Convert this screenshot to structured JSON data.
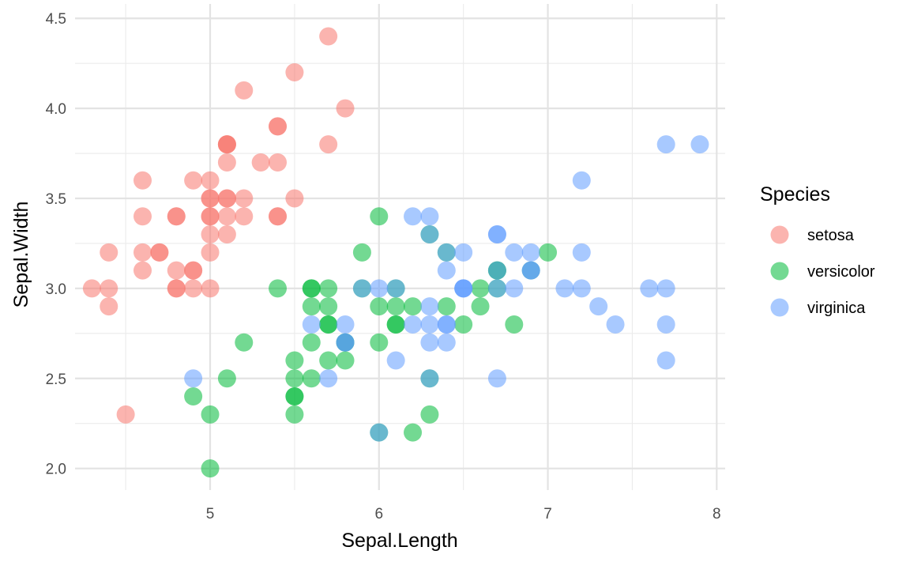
{
  "chart_data": {
    "type": "scatter",
    "xlabel": "Sepal.Length",
    "ylabel": "Sepal.Width",
    "xlim": [
      4.2,
      8.05
    ],
    "ylim": [
      1.88,
      4.58
    ],
    "x_ticks": [
      5,
      6,
      7,
      8
    ],
    "x_tick_labels": [
      "5",
      "6",
      "7",
      "8"
    ],
    "y_ticks": [
      2.0,
      2.5,
      3.0,
      3.5,
      4.0,
      4.5
    ],
    "y_tick_labels": [
      "2.0",
      "2.5",
      "3.0",
      "3.5",
      "4.0",
      "4.5"
    ],
    "grid": true,
    "legend": {
      "title": "Species",
      "position": "right"
    },
    "series": [
      {
        "name": "setosa",
        "color": "#F8766D",
        "points": [
          [
            5.1,
            3.5
          ],
          [
            4.9,
            3.0
          ],
          [
            4.7,
            3.2
          ],
          [
            4.6,
            3.1
          ],
          [
            5.0,
            3.6
          ],
          [
            5.4,
            3.9
          ],
          [
            4.6,
            3.4
          ],
          [
            5.0,
            3.4
          ],
          [
            4.4,
            2.9
          ],
          [
            4.9,
            3.1
          ],
          [
            5.4,
            3.7
          ],
          [
            4.8,
            3.4
          ],
          [
            4.8,
            3.0
          ],
          [
            4.3,
            3.0
          ],
          [
            5.8,
            4.0
          ],
          [
            5.7,
            4.4
          ],
          [
            5.4,
            3.9
          ],
          [
            5.1,
            3.5
          ],
          [
            5.7,
            3.8
          ],
          [
            5.1,
            3.8
          ],
          [
            5.4,
            3.4
          ],
          [
            5.1,
            3.7
          ],
          [
            4.6,
            3.6
          ],
          [
            5.1,
            3.3
          ],
          [
            4.8,
            3.4
          ],
          [
            5.0,
            3.0
          ],
          [
            5.0,
            3.4
          ],
          [
            5.2,
            3.5
          ],
          [
            5.2,
            3.4
          ],
          [
            4.7,
            3.2
          ],
          [
            4.8,
            3.1
          ],
          [
            5.4,
            3.4
          ],
          [
            5.2,
            4.1
          ],
          [
            5.5,
            4.2
          ],
          [
            4.9,
            3.1
          ],
          [
            5.0,
            3.2
          ],
          [
            5.5,
            3.5
          ],
          [
            4.9,
            3.6
          ],
          [
            4.4,
            3.0
          ],
          [
            5.1,
            3.4
          ],
          [
            5.0,
            3.5
          ],
          [
            4.5,
            2.3
          ],
          [
            4.4,
            3.2
          ],
          [
            5.0,
            3.5
          ],
          [
            5.1,
            3.8
          ],
          [
            4.8,
            3.0
          ],
          [
            5.1,
            3.8
          ],
          [
            4.6,
            3.2
          ],
          [
            5.3,
            3.7
          ],
          [
            5.0,
            3.3
          ]
        ]
      },
      {
        "name": "versicolor",
        "color": "#00BA38",
        "points": [
          [
            7.0,
            3.2
          ],
          [
            6.4,
            3.2
          ],
          [
            6.9,
            3.1
          ],
          [
            5.5,
            2.3
          ],
          [
            6.5,
            2.8
          ],
          [
            5.7,
            2.8
          ],
          [
            6.3,
            3.3
          ],
          [
            4.9,
            2.4
          ],
          [
            6.6,
            2.9
          ],
          [
            5.2,
            2.7
          ],
          [
            5.0,
            2.0
          ],
          [
            5.9,
            3.0
          ],
          [
            6.0,
            2.2
          ],
          [
            6.1,
            2.9
          ],
          [
            5.6,
            2.9
          ],
          [
            6.7,
            3.1
          ],
          [
            5.6,
            3.0
          ],
          [
            5.8,
            2.7
          ],
          [
            6.2,
            2.2
          ],
          [
            5.6,
            2.5
          ],
          [
            5.9,
            3.2
          ],
          [
            6.1,
            2.8
          ],
          [
            6.3,
            2.5
          ],
          [
            6.1,
            2.8
          ],
          [
            6.4,
            2.9
          ],
          [
            6.6,
            3.0
          ],
          [
            6.8,
            2.8
          ],
          [
            6.7,
            3.0
          ],
          [
            6.0,
            2.9
          ],
          [
            5.7,
            2.6
          ],
          [
            5.5,
            2.4
          ],
          [
            5.5,
            2.4
          ],
          [
            5.8,
            2.7
          ],
          [
            6.0,
            2.7
          ],
          [
            5.4,
            3.0
          ],
          [
            6.0,
            3.4
          ],
          [
            6.7,
            3.1
          ],
          [
            6.3,
            2.3
          ],
          [
            5.6,
            3.0
          ],
          [
            5.5,
            2.5
          ],
          [
            5.5,
            2.6
          ],
          [
            6.1,
            3.0
          ],
          [
            5.8,
            2.6
          ],
          [
            5.0,
            2.3
          ],
          [
            5.6,
            2.7
          ],
          [
            5.7,
            3.0
          ],
          [
            5.7,
            2.9
          ],
          [
            6.2,
            2.9
          ],
          [
            5.1,
            2.5
          ],
          [
            5.7,
            2.8
          ]
        ]
      },
      {
        "name": "virginica",
        "color": "#619CFF",
        "points": [
          [
            6.3,
            3.3
          ],
          [
            5.8,
            2.7
          ],
          [
            7.1,
            3.0
          ],
          [
            6.3,
            2.9
          ],
          [
            6.5,
            3.0
          ],
          [
            7.6,
            3.0
          ],
          [
            4.9,
            2.5
          ],
          [
            7.3,
            2.9
          ],
          [
            6.7,
            2.5
          ],
          [
            7.2,
            3.6
          ],
          [
            6.5,
            3.2
          ],
          [
            6.4,
            2.7
          ],
          [
            6.8,
            3.0
          ],
          [
            5.7,
            2.5
          ],
          [
            5.8,
            2.8
          ],
          [
            6.4,
            3.2
          ],
          [
            6.5,
            3.0
          ],
          [
            7.7,
            3.8
          ],
          [
            7.7,
            2.6
          ],
          [
            6.0,
            2.2
          ],
          [
            6.9,
            3.2
          ],
          [
            5.6,
            2.8
          ],
          [
            7.7,
            2.8
          ],
          [
            6.3,
            2.7
          ],
          [
            6.7,
            3.3
          ],
          [
            7.2,
            3.2
          ],
          [
            6.2,
            2.8
          ],
          [
            6.1,
            3.0
          ],
          [
            6.4,
            2.8
          ],
          [
            7.2,
            3.0
          ],
          [
            7.4,
            2.8
          ],
          [
            7.9,
            3.8
          ],
          [
            6.4,
            2.8
          ],
          [
            6.3,
            2.8
          ],
          [
            6.1,
            2.6
          ],
          [
            7.7,
            3.0
          ],
          [
            6.3,
            3.4
          ],
          [
            6.4,
            3.1
          ],
          [
            6.0,
            3.0
          ],
          [
            6.9,
            3.1
          ],
          [
            6.7,
            3.1
          ],
          [
            6.9,
            3.1
          ],
          [
            5.8,
            2.7
          ],
          [
            6.8,
            3.2
          ],
          [
            6.7,
            3.3
          ],
          [
            6.7,
            3.0
          ],
          [
            6.3,
            2.5
          ],
          [
            6.5,
            3.0
          ],
          [
            6.2,
            3.4
          ],
          [
            5.9,
            3.0
          ]
        ]
      }
    ]
  }
}
